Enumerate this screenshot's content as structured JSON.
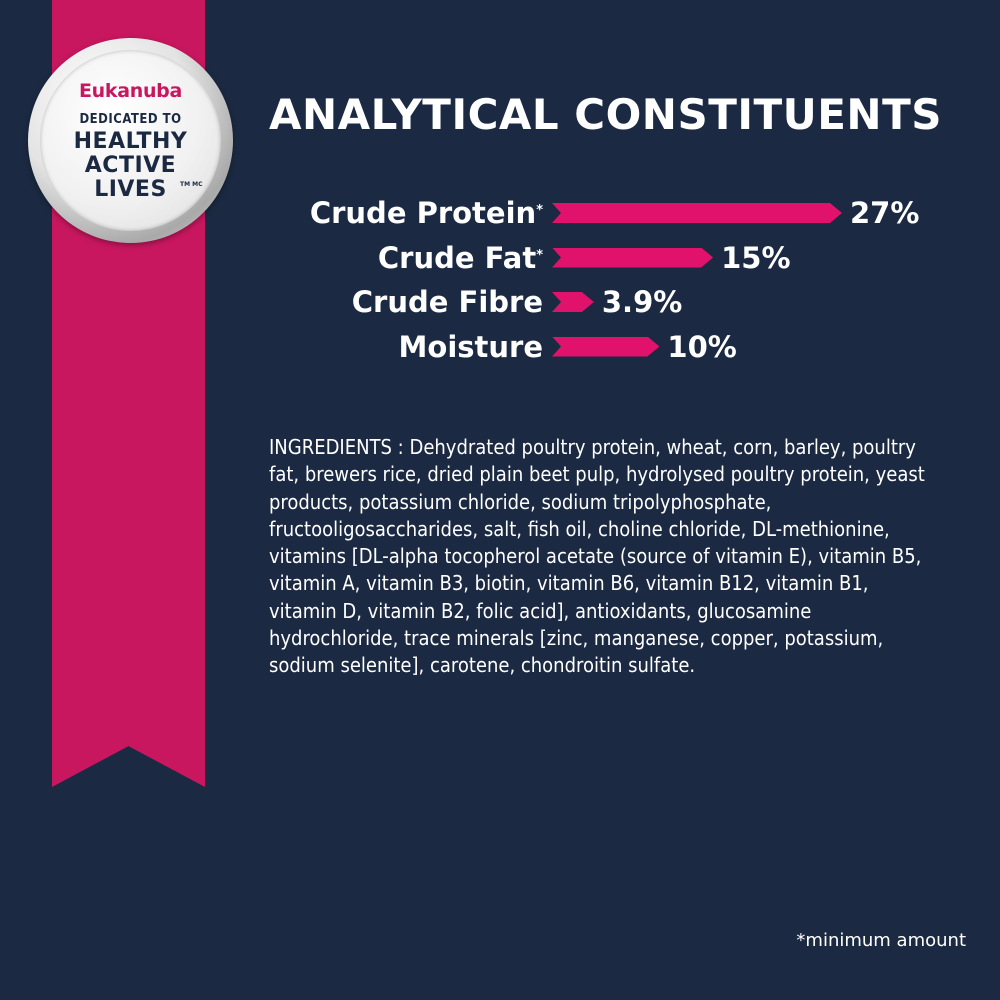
{
  "badge": {
    "brand": "Eukanuba",
    "dedicated": "DEDICATED TO",
    "line1": "HEALTHY",
    "line2": "ACTIVE",
    "line3": "LIVES",
    "tm": "TM MC"
  },
  "colors": {
    "background": "#1b2a42",
    "ribbon": "#c8175f",
    "bar": "#e0126b",
    "text": "#ffffff"
  },
  "chart_data": {
    "type": "bar",
    "title": "ANALYTICAL CONSTITUENTS",
    "orientation": "horizontal",
    "categories": [
      "Crude Protein",
      "Crude Fat",
      "Crude Fibre",
      "Moisture"
    ],
    "markers": [
      "*",
      "*",
      "",
      ""
    ],
    "values": [
      27,
      15,
      3.9,
      10
    ],
    "value_labels": [
      "27%",
      "15%",
      "3.9%",
      "10%"
    ],
    "unit": "%",
    "xlim": [
      0,
      27
    ]
  },
  "ingredients": "INGREDIENTS : Dehydrated poultry protein, wheat, corn, barley, poultry fat, brewers rice, dried plain beet pulp, hydrolysed poultry protein, yeast products, potassium chloride, sodium tripolyphosphate, fructooligosaccharides, salt, fish oil, choline chloride, DL-methionine, vitamins [DL-alpha tocopherol acetate (source of vitamin E), vitamin B5, vitamin A, vitamin B3, biotin, vitamin B6, vitamin B12, vitamin B1, vitamin D, vitamin B2, folic acid], antioxidants, glucosamine hydrochloride, trace minerals [zinc, manganese, copper, potassium, sodium selenite], carotene, chondroitin sulfate.",
  "footnote": "*minimum amount"
}
